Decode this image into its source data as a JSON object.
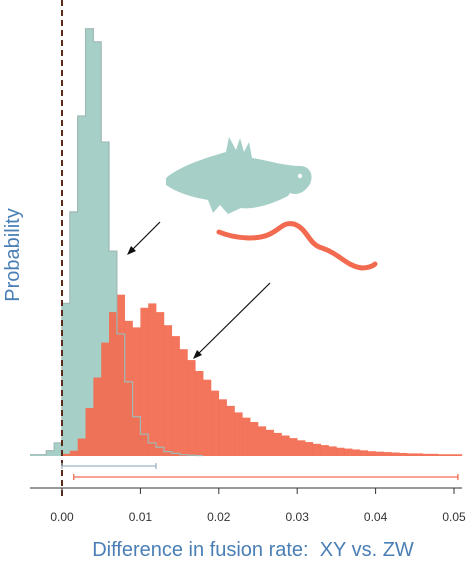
{
  "chart_data": {
    "type": "histogram",
    "title": "",
    "xlabel": "Difference in fusion rate:  XY vs. ZW",
    "ylabel": "Probability",
    "xlim": [
      -0.004,
      0.052
    ],
    "x_ticks": [
      0.0,
      0.01,
      0.02,
      0.03,
      0.04,
      0.05
    ],
    "x_tick_labels": [
      "0.00",
      "0.01",
      "0.02",
      "0.03",
      "0.04",
      "0.05"
    ],
    "grid": false,
    "bin_width": 0.001,
    "reference_line": {
      "x": 0.0,
      "style": "dashed",
      "color": "#5a2a1a"
    },
    "series": [
      {
        "key": "fish",
        "color": "#a6cfc8",
        "edge_color": "#9fb9b5",
        "icon": "fish-silhouette",
        "bin_start": -0.004,
        "values": [
          0.003,
          0.003,
          0.012,
          0.03,
          0.35,
          0.56,
          0.78,
          0.98,
          0.95,
          0.72,
          0.47,
          0.28,
          0.17,
          0.09,
          0.05,
          0.03,
          0.02,
          0.01,
          0.006,
          0.003,
          0.002,
          0.001
        ],
        "interval": [
          0.0,
          0.012
        ]
      },
      {
        "key": "snake",
        "color": "#f26b50",
        "edge_color": "#d9533a",
        "icon": "snake-silhouette",
        "bin_start": 0.0,
        "values": [
          0.005,
          0.012,
          0.04,
          0.11,
          0.18,
          0.26,
          0.33,
          0.37,
          0.31,
          0.295,
          0.34,
          0.35,
          0.33,
          0.3,
          0.275,
          0.245,
          0.22,
          0.195,
          0.175,
          0.15,
          0.13,
          0.115,
          0.1,
          0.088,
          0.078,
          0.068,
          0.06,
          0.053,
          0.047,
          0.041,
          0.036,
          0.032,
          0.028,
          0.025,
          0.022,
          0.019,
          0.017,
          0.015,
          0.013,
          0.011,
          0.01,
          0.009,
          0.008,
          0.007,
          0.006,
          0.006,
          0.005,
          0.005,
          0.004,
          0.004,
          0.004
        ],
        "interval": [
          0.0015,
          0.0505
        ]
      }
    ]
  }
}
